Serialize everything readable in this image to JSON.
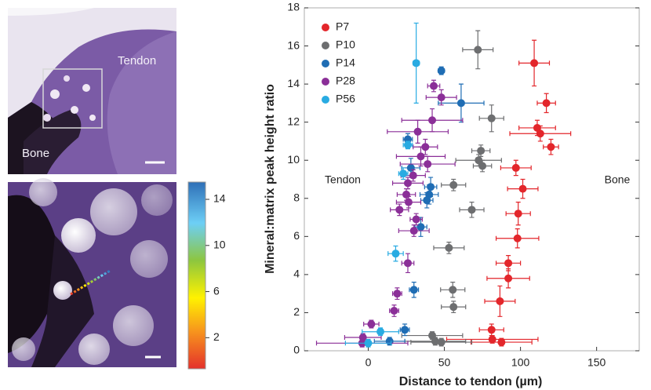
{
  "micrograph_labels": {
    "tendon": "Tendon",
    "bone": "Bone"
  },
  "colorbar": {
    "lim": [
      -0.7,
      15.5
    ],
    "ticks": [
      2,
      6,
      10,
      14
    ]
  },
  "chart_data": {
    "type": "scatter",
    "xlabel": "Distance to tendon (µm)",
    "ylabel": "Mineral:matrix peak height ratio",
    "annotations": [
      "Tendon",
      "Bone"
    ],
    "xlim": [
      -42,
      178
    ],
    "ylim": [
      0,
      18
    ],
    "xticks": [
      0,
      50,
      100,
      150
    ],
    "yticks": [
      0,
      2,
      4,
      6,
      8,
      10,
      12,
      14,
      16,
      18
    ],
    "legend": "upper left",
    "series": [
      {
        "name": "P7",
        "color": "#e3262b",
        "x": [
          109,
          117,
          111,
          113,
          120,
          97,
          101.5,
          98.5,
          98,
          92,
          92,
          86.5,
          81,
          81.5,
          87.5
        ],
        "values": [
          15.1,
          13.0,
          11.7,
          11.4,
          10.7,
          9.6,
          8.5,
          7.2,
          5.9,
          4.6,
          3.8,
          2.6,
          1.1,
          0.6,
          0.45
        ],
        "xerr": [
          10,
          6,
          12,
          20,
          5,
          10,
          10,
          8,
          14,
          8,
          14,
          10,
          8,
          30,
          20
        ],
        "yerr": [
          1.2,
          0.5,
          0.4,
          0.4,
          0.4,
          0.4,
          0.5,
          0.6,
          0.5,
          0.4,
          0.5,
          0.8,
          0.3,
          0.2,
          0.2
        ]
      },
      {
        "name": "P10",
        "color": "#6d6e70",
        "x": [
          72,
          81,
          74,
          72.5,
          75,
          56,
          68,
          53,
          55.5,
          56,
          42,
          44,
          48
        ],
        "values": [
          15.8,
          12.2,
          10.5,
          10.0,
          9.7,
          8.7,
          7.4,
          5.4,
          3.2,
          2.3,
          0.8,
          0.5,
          0.45
        ],
        "xerr": [
          10,
          8,
          6,
          15,
          6,
          8,
          8,
          10,
          8,
          8,
          20,
          20,
          20
        ],
        "yerr": [
          1.0,
          0.7,
          0.3,
          0.3,
          0.3,
          0.3,
          0.4,
          0.3,
          0.4,
          0.3,
          0.2,
          0.2,
          0.2
        ]
      },
      {
        "name": "P14",
        "color": "#1f6db4",
        "x": [
          48,
          61,
          26,
          28,
          41,
          40,
          38.5,
          34.5,
          30,
          24,
          14
        ],
        "values": [
          14.7,
          13.0,
          11.1,
          9.6,
          8.6,
          8.2,
          7.9,
          6.5,
          3.2,
          1.1,
          0.5
        ],
        "xerr": [
          2,
          15,
          3,
          6,
          4,
          6,
          4,
          4,
          3,
          3,
          10
        ],
        "yerr": [
          0.2,
          1.0,
          0.3,
          0.5,
          0.5,
          0.5,
          0.4,
          0.5,
          0.4,
          0.3,
          0.2
        ]
      },
      {
        "name": "P28",
        "color": "#8b2f98",
        "x": [
          43,
          48,
          42,
          32.5,
          37.5,
          34.5,
          39,
          29.5,
          26,
          25,
          26.5,
          20.5,
          31.5,
          30,
          26,
          19,
          17,
          2,
          -3.5,
          -4
        ],
        "values": [
          13.9,
          13.3,
          12.1,
          11.5,
          10.7,
          10.2,
          9.8,
          9.2,
          8.8,
          8.2,
          7.8,
          7.4,
          6.9,
          6.3,
          4.6,
          3.0,
          2.1,
          1.4,
          0.7,
          0.4
        ],
        "xerr": [
          4,
          10,
          20,
          20,
          8,
          16,
          18,
          8,
          10,
          6,
          8,
          6,
          4,
          10,
          4,
          3,
          3,
          5,
          12,
          30
        ],
        "yerr": [
          0.3,
          0.4,
          0.6,
          0.6,
          0.4,
          0.5,
          0.4,
          0.3,
          0.3,
          0.3,
          0.3,
          0.3,
          0.3,
          0.3,
          0.5,
          0.3,
          0.3,
          0.2,
          0.2,
          0.2
        ]
      },
      {
        "name": "P56",
        "color": "#29abe2",
        "x": [
          31.5,
          26,
          23,
          18,
          8,
          0
        ],
        "values": [
          15.1,
          10.8,
          9.3,
          5.1,
          1.0,
          0.4
        ],
        "xerr": [
          2,
          3,
          3,
          5,
          12,
          15
        ],
        "yerr": [
          2.1,
          0.2,
          0.3,
          0.4,
          0.2,
          0.2
        ]
      }
    ]
  }
}
